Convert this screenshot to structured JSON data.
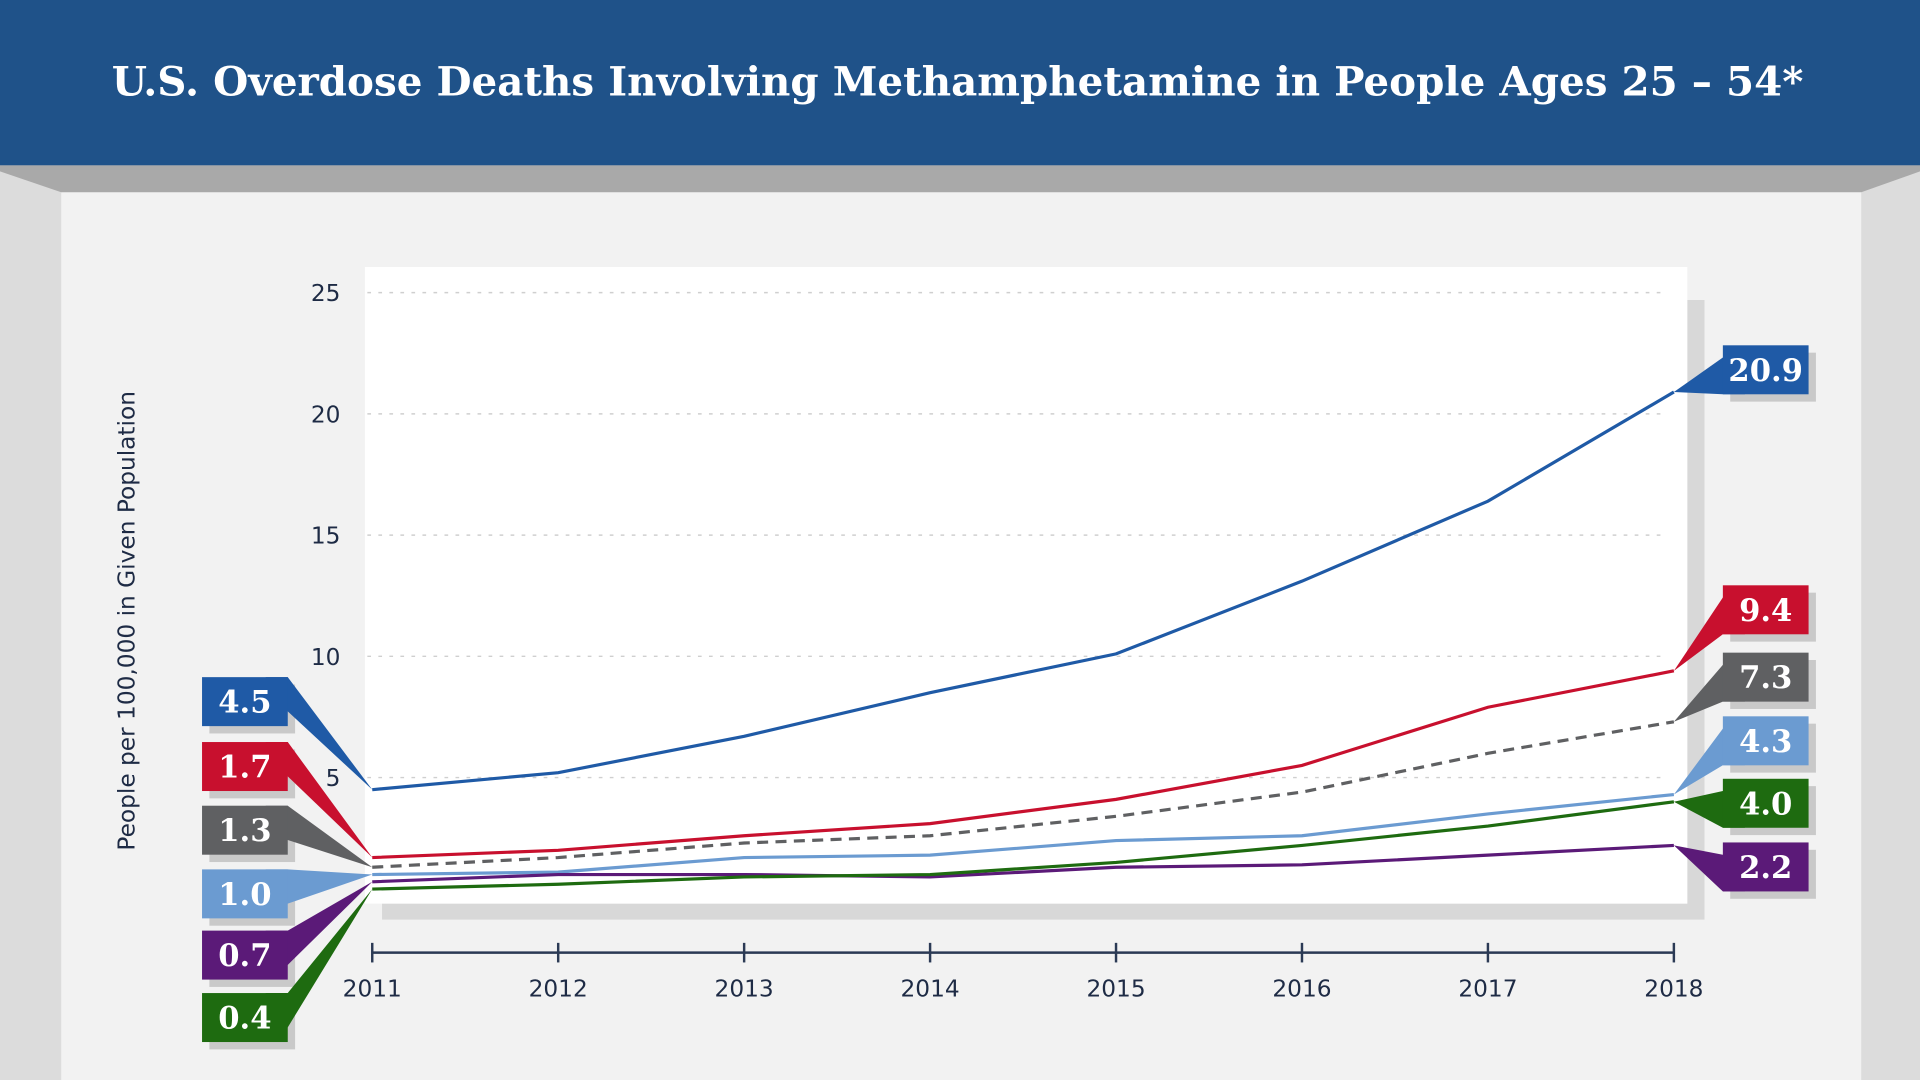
{
  "title": "U.S. Overdose Deaths Involving Methamphetamine in People Ages 25 – 54*",
  "colors": {
    "header": "#1f5289",
    "panel": "#f2f2f2",
    "axis": "#2b3a55"
  },
  "chart_data": {
    "type": "line",
    "title": "U.S. Overdose Deaths Involving Methamphetamine in People Ages 25 – 54*",
    "xlabel": "",
    "ylabel": "People per 100,000 in Given Population",
    "x": [
      "2011",
      "2012",
      "2013",
      "2014",
      "2015",
      "2016",
      "2017",
      "2018"
    ],
    "yticks": [
      "5",
      "10",
      "15",
      "20",
      "25"
    ],
    "ylim": [
      0,
      25
    ],
    "grid": "horizontal dotted",
    "legend": "none",
    "series": [
      {
        "color": "#1f5aa6",
        "dashed": false,
        "start_label": "4.5",
        "end_label": "20.9",
        "values": [
          4.5,
          5.2,
          6.7,
          8.5,
          10.1,
          13.1,
          16.4,
          20.9
        ]
      },
      {
        "color": "#c8102e",
        "dashed": false,
        "start_label": "1.7",
        "end_label": "9.4",
        "values": [
          1.7,
          2.0,
          2.6,
          3.1,
          4.1,
          5.5,
          7.9,
          9.4
        ]
      },
      {
        "color": "#5f6062",
        "dashed": true,
        "start_label": "1.3",
        "end_label": "7.3",
        "values": [
          1.3,
          1.7,
          2.3,
          2.6,
          3.4,
          4.4,
          6.0,
          7.3
        ]
      },
      {
        "color": "#6b9bd1",
        "dashed": false,
        "start_label": "1.0",
        "end_label": "4.3",
        "values": [
          1.0,
          1.1,
          1.7,
          1.8,
          2.4,
          2.6,
          3.5,
          4.3
        ]
      },
      {
        "color": "#5b1a78",
        "dashed": false,
        "start_label": "0.7",
        "end_label": "2.2",
        "values": [
          0.7,
          1.0,
          1.0,
          0.9,
          1.3,
          1.4,
          1.8,
          2.2
        ]
      },
      {
        "color": "#1e6b10",
        "dashed": false,
        "start_label": "0.4",
        "end_label": "4.0",
        "values": [
          0.4,
          0.6,
          0.9,
          1.0,
          1.5,
          2.2,
          3.0,
          4.0
        ]
      }
    ]
  }
}
